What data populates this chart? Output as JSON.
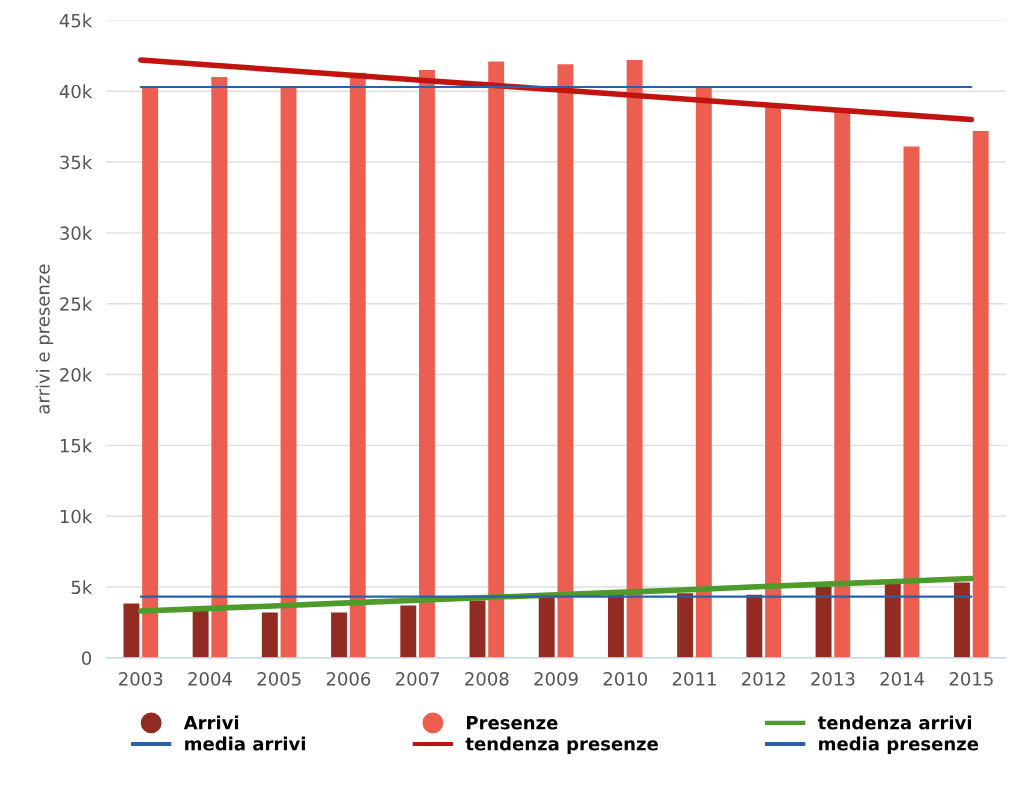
{
  "chart_data": {
    "type": "bar",
    "ylabel": "arrivi e presenze",
    "categories": [
      "2003",
      "2004",
      "2005",
      "2006",
      "2007",
      "2008",
      "2009",
      "2010",
      "2011",
      "2012",
      "2013",
      "2014",
      "2015"
    ],
    "series": [
      {
        "name": "Arrivi",
        "color": "#922b21",
        "values": [
          3830,
          3300,
          3200,
          3200,
          3700,
          4040,
          4280,
          4490,
          4560,
          4460,
          5030,
          5220,
          5310
        ]
      },
      {
        "name": "Presenze",
        "color": "#ec5e4f",
        "values": [
          40300,
          41000,
          40300,
          41300,
          41500,
          42100,
          41900,
          42200,
          40300,
          39000,
          38600,
          36100,
          37200
        ]
      },
      {
        "name": "tendenza arrivi",
        "type": "line",
        "color": "#4e9a2a",
        "values": [
          3300,
          3490,
          3680,
          3880,
          4070,
          4260,
          4450,
          4640,
          4830,
          5030,
          5220,
          5410,
          5600
        ]
      },
      {
        "name": "media arrivi",
        "type": "line",
        "color": "#2a62a8",
        "values": [
          4320,
          4320,
          4320,
          4320,
          4320,
          4320,
          4320,
          4320,
          4320,
          4320,
          4320,
          4320,
          4320
        ]
      },
      {
        "name": "tendenza presenze",
        "type": "line",
        "color": "#c0140e",
        "values": [
          42200,
          41850,
          41500,
          41150,
          40800,
          40450,
          40100,
          39750,
          39400,
          39050,
          38700,
          38350,
          38000
        ]
      },
      {
        "name": "media presenze",
        "type": "line",
        "color": "#2a62a8",
        "values": [
          40300,
          40300,
          40300,
          40300,
          40300,
          40300,
          40300,
          40300,
          40300,
          40300,
          40300,
          40300,
          40300
        ]
      }
    ],
    "ylim": [
      0,
      45000
    ],
    "yticks": [
      0,
      {
        "value": 5000,
        "label": "5k"
      },
      {
        "value": 10000,
        "label": "10k"
      },
      {
        "value": 15000,
        "label": "15k"
      },
      {
        "value": 20000,
        "label": "20k"
      },
      {
        "value": 25000,
        "label": "25k"
      },
      {
        "value": 30000,
        "label": "30k"
      },
      {
        "value": 35000,
        "label": "35k"
      },
      {
        "value": 40000,
        "label": "40k"
      },
      {
        "value": 45000,
        "label": "45k"
      }
    ],
    "grid": "y",
    "legend": "bottom"
  }
}
